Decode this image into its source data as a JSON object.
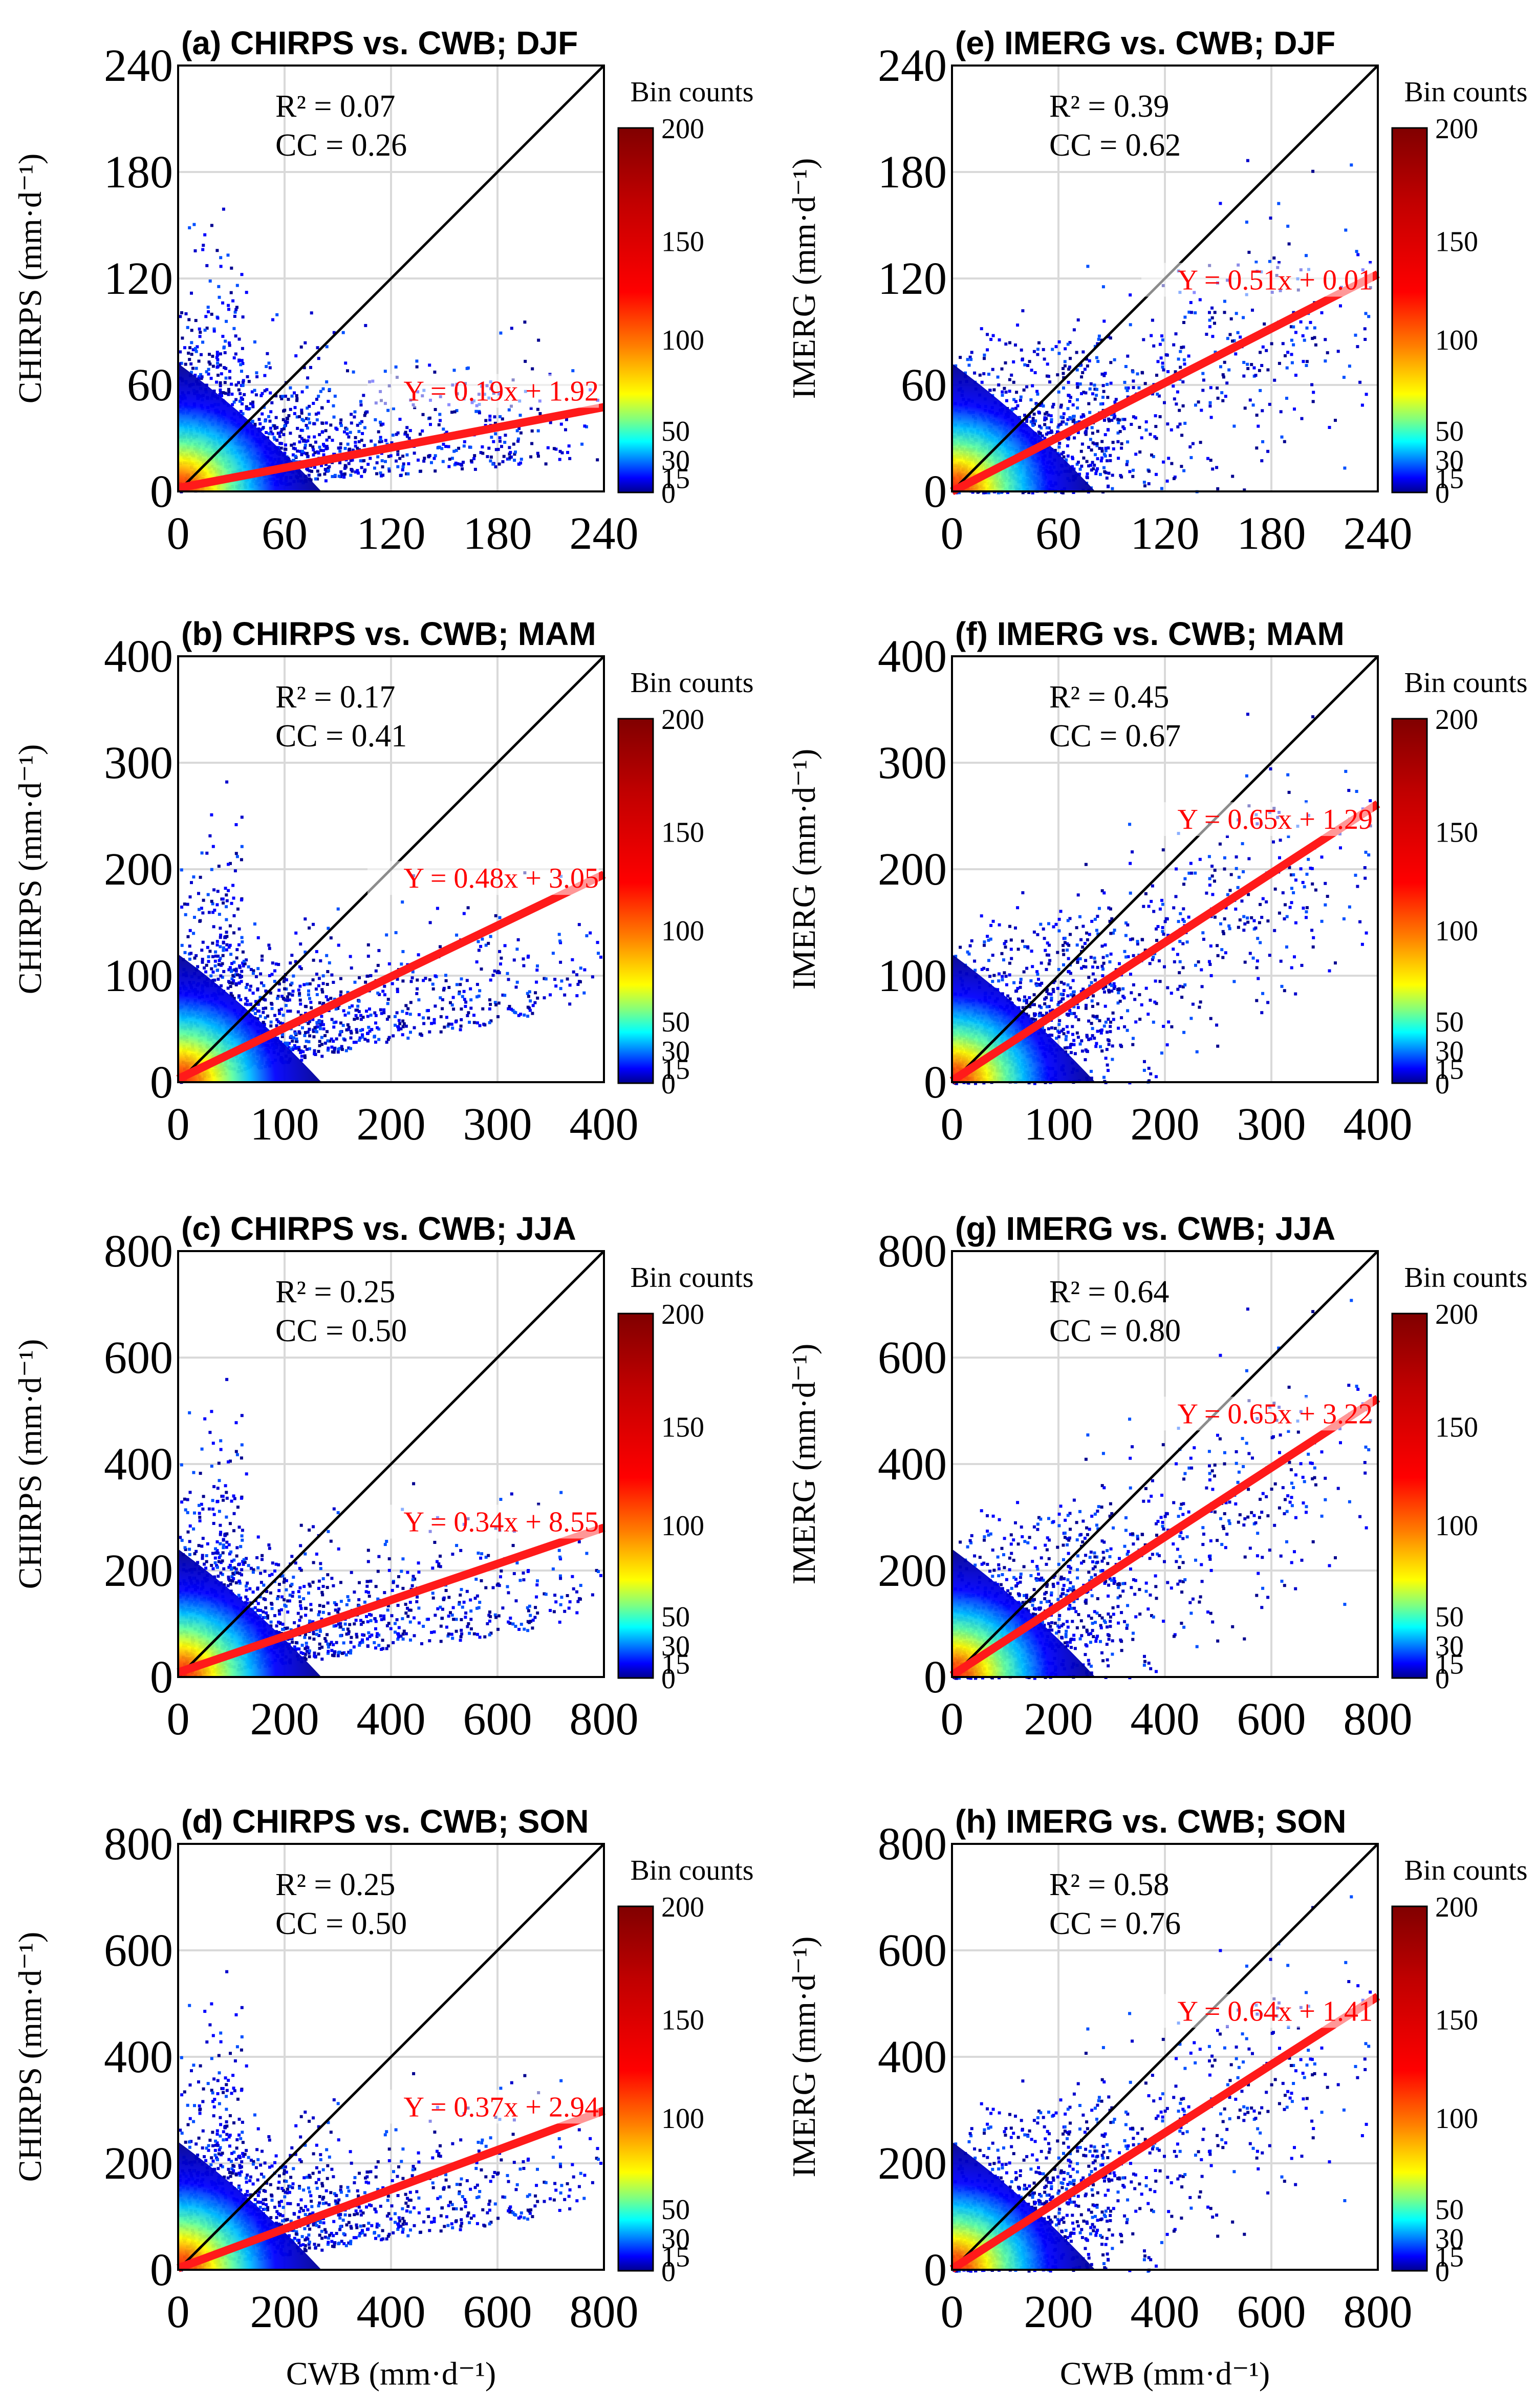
{
  "colors": {
    "regression": "#ff1a1a",
    "equation_text": "#ff0000",
    "one_to_one": "#000000",
    "grid": "#d9d9d9",
    "colormap": [
      "#00008f",
      "#0000ff",
      "#0080ff",
      "#00ffff",
      "#80ff80",
      "#ffff00",
      "#ff8000",
      "#ff0000",
      "#a00000",
      "#800000"
    ]
  },
  "chart_data": [
    {
      "id": "a",
      "type": "heatmap",
      "column": 0,
      "row": 0,
      "title": "(a) CHIRPS vs. CWB; DJF",
      "ylabel": "CHIRPS (mm·d⁻¹)",
      "xlabel": "",
      "xlim": [
        0,
        240
      ],
      "ylim": [
        0,
        240
      ],
      "xticks": [
        "0",
        "60",
        "120",
        "180",
        "240"
      ],
      "yticks": [
        "0",
        "60",
        "120",
        "180",
        "240"
      ],
      "r2": "R² = 0.07",
      "cc": "CC = 0.26",
      "equation": "Y = 0.19x + 1.92",
      "slope": 0.19,
      "intercept": 1.92,
      "colorbar_title": "Bin counts",
      "colorbar_ticks": [
        "0",
        "15",
        "30",
        "50",
        "100",
        "150",
        "200"
      ],
      "colorbar_values": [
        0,
        15,
        30,
        50,
        100,
        150,
        200
      ]
    },
    {
      "id": "b",
      "type": "heatmap",
      "column": 0,
      "row": 1,
      "title": "(b) CHIRPS vs. CWB; MAM",
      "ylabel": "CHIRPS (mm·d⁻¹)",
      "xlabel": "",
      "xlim": [
        0,
        400
      ],
      "ylim": [
        0,
        400
      ],
      "xticks": [
        "0",
        "100",
        "200",
        "300",
        "400"
      ],
      "yticks": [
        "0",
        "100",
        "200",
        "300",
        "400"
      ],
      "r2": "R² = 0.17",
      "cc": "CC = 0.41",
      "equation": "Y = 0.48x + 3.05",
      "slope": 0.48,
      "intercept": 3.05,
      "colorbar_title": "Bin counts",
      "colorbar_ticks": [
        "0",
        "15",
        "30",
        "50",
        "100",
        "150",
        "200"
      ],
      "colorbar_values": [
        0,
        15,
        30,
        50,
        100,
        150,
        200
      ]
    },
    {
      "id": "c",
      "type": "heatmap",
      "column": 0,
      "row": 2,
      "title": "(c) CHIRPS vs. CWB; JJA",
      "ylabel": "CHIRPS (mm·d⁻¹)",
      "xlabel": "",
      "xlim": [
        0,
        800
      ],
      "ylim": [
        0,
        800
      ],
      "xticks": [
        "0",
        "200",
        "400",
        "600",
        "800"
      ],
      "yticks": [
        "0",
        "200",
        "400",
        "600",
        "800"
      ],
      "r2": "R² = 0.25",
      "cc": "CC = 0.50",
      "equation": "Y = 0.34x + 8.55",
      "slope": 0.34,
      "intercept": 8.55,
      "colorbar_title": "Bin counts",
      "colorbar_ticks": [
        "0",
        "15",
        "30",
        "50",
        "100",
        "150",
        "200"
      ],
      "colorbar_values": [
        0,
        15,
        30,
        50,
        100,
        150,
        200
      ]
    },
    {
      "id": "d",
      "type": "heatmap",
      "column": 0,
      "row": 3,
      "title": "(d) CHIRPS vs. CWB; SON",
      "ylabel": "CHIRPS (mm·d⁻¹)",
      "xlabel": "CWB (mm·d⁻¹)",
      "xlim": [
        0,
        800
      ],
      "ylim": [
        0,
        800
      ],
      "xticks": [
        "0",
        "200",
        "400",
        "600",
        "800"
      ],
      "yticks": [
        "0",
        "200",
        "400",
        "600",
        "800"
      ],
      "r2": "R² = 0.25",
      "cc": "CC = 0.50",
      "equation": "Y = 0.37x + 2.94",
      "slope": 0.37,
      "intercept": 2.94,
      "colorbar_title": "Bin counts",
      "colorbar_ticks": [
        "0",
        "15",
        "30",
        "50",
        "100",
        "150",
        "200"
      ],
      "colorbar_values": [
        0,
        15,
        30,
        50,
        100,
        150,
        200
      ]
    },
    {
      "id": "e",
      "type": "heatmap",
      "column": 1,
      "row": 0,
      "title": "(e) IMERG vs. CWB; DJF",
      "ylabel": "IMERG (mm·d⁻¹)",
      "xlabel": "",
      "xlim": [
        0,
        240
      ],
      "ylim": [
        0,
        240
      ],
      "xticks": [
        "0",
        "60",
        "120",
        "180",
        "240"
      ],
      "yticks": [
        "0",
        "60",
        "120",
        "180",
        "240"
      ],
      "r2": "R² = 0.39",
      "cc": "CC = 0.62",
      "equation": "Y = 0.51x + 0.01",
      "slope": 0.51,
      "intercept": 0.01,
      "colorbar_title": "Bin counts",
      "colorbar_ticks": [
        "0",
        "15",
        "30",
        "50",
        "100",
        "150",
        "200"
      ],
      "colorbar_values": [
        0,
        15,
        30,
        50,
        100,
        150,
        200
      ]
    },
    {
      "id": "f",
      "type": "heatmap",
      "column": 1,
      "row": 1,
      "title": "(f) IMERG vs. CWB; MAM",
      "ylabel": "IMERG (mm·d⁻¹)",
      "xlabel": "",
      "xlim": [
        0,
        400
      ],
      "ylim": [
        0,
        400
      ],
      "xticks": [
        "0",
        "100",
        "200",
        "300",
        "400"
      ],
      "yticks": [
        "0",
        "100",
        "200",
        "300",
        "400"
      ],
      "r2": "R² = 0.45",
      "cc": "CC = 0.67",
      "equation": "Y = 0.65x + 1.29",
      "slope": 0.65,
      "intercept": 1.29,
      "colorbar_title": "Bin counts",
      "colorbar_ticks": [
        "0",
        "15",
        "30",
        "50",
        "100",
        "150",
        "200"
      ],
      "colorbar_values": [
        0,
        15,
        30,
        50,
        100,
        150,
        200
      ]
    },
    {
      "id": "g",
      "type": "heatmap",
      "column": 1,
      "row": 2,
      "title": "(g) IMERG vs. CWB; JJA",
      "ylabel": "IMERG (mm·d⁻¹)",
      "xlabel": "",
      "xlim": [
        0,
        800
      ],
      "ylim": [
        0,
        800
      ],
      "xticks": [
        "0",
        "200",
        "400",
        "600",
        "800"
      ],
      "yticks": [
        "0",
        "200",
        "400",
        "600",
        "800"
      ],
      "r2": "R² = 0.64",
      "cc": "CC = 0.80",
      "equation": "Y = 0.65x + 3.22",
      "slope": 0.65,
      "intercept": 3.22,
      "colorbar_title": "Bin counts",
      "colorbar_ticks": [
        "0",
        "15",
        "30",
        "50",
        "100",
        "150",
        "200"
      ],
      "colorbar_values": [
        0,
        15,
        30,
        50,
        100,
        150,
        200
      ]
    },
    {
      "id": "h",
      "type": "heatmap",
      "column": 1,
      "row": 3,
      "title": "(h) IMERG vs. CWB; SON",
      "ylabel": "IMERG (mm·d⁻¹)",
      "xlabel": "CWB (mm·d⁻¹)",
      "xlim": [
        0,
        800
      ],
      "ylim": [
        0,
        800
      ],
      "xticks": [
        "0",
        "200",
        "400",
        "600",
        "800"
      ],
      "yticks": [
        "0",
        "200",
        "400",
        "600",
        "800"
      ],
      "r2": "R² = 0.58",
      "cc": "CC = 0.76",
      "equation": "Y = 0.64x + 1.41",
      "slope": 0.64,
      "intercept": 1.41,
      "colorbar_title": "Bin counts",
      "colorbar_ticks": [
        "0",
        "15",
        "30",
        "50",
        "100",
        "150",
        "200"
      ],
      "colorbar_values": [
        0,
        15,
        30,
        50,
        100,
        150,
        200
      ]
    }
  ]
}
